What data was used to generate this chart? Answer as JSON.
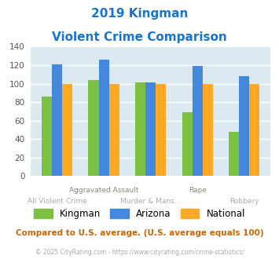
{
  "title_line1": "2019 Kingman",
  "title_line2": "Violent Crime Comparison",
  "title_color": "#1874cd",
  "top_labels": [
    "",
    "Aggravated Assault",
    "",
    "Rape",
    ""
  ],
  "bottom_labels": [
    "All Violent Crime",
    "",
    "Murder & Mans...",
    "",
    "Robbery"
  ],
  "top_label_color": "#888877",
  "bottom_label_color": "#aaaaaa",
  "kingman": [
    86,
    104,
    101,
    69,
    48
  ],
  "arizona": [
    121,
    126,
    101,
    119,
    108
  ],
  "national": [
    100,
    100,
    100,
    100,
    100
  ],
  "kingman_color": "#7dc142",
  "arizona_color": "#4488dd",
  "national_color": "#ffaa22",
  "ylim": [
    0,
    140
  ],
  "yticks": [
    0,
    20,
    40,
    60,
    80,
    100,
    120,
    140
  ],
  "plot_bg_color": "#dce9f0",
  "footer_text": "Compared to U.S. average. (U.S. average equals 100)",
  "copyright_text": "© 2025 CityRating.com - https://www.cityrating.com/crime-statistics/",
  "footer_color": "#cc6600",
  "copyright_color": "#aaaaaa",
  "legend_labels": [
    "Kingman",
    "Arizona",
    "National"
  ]
}
